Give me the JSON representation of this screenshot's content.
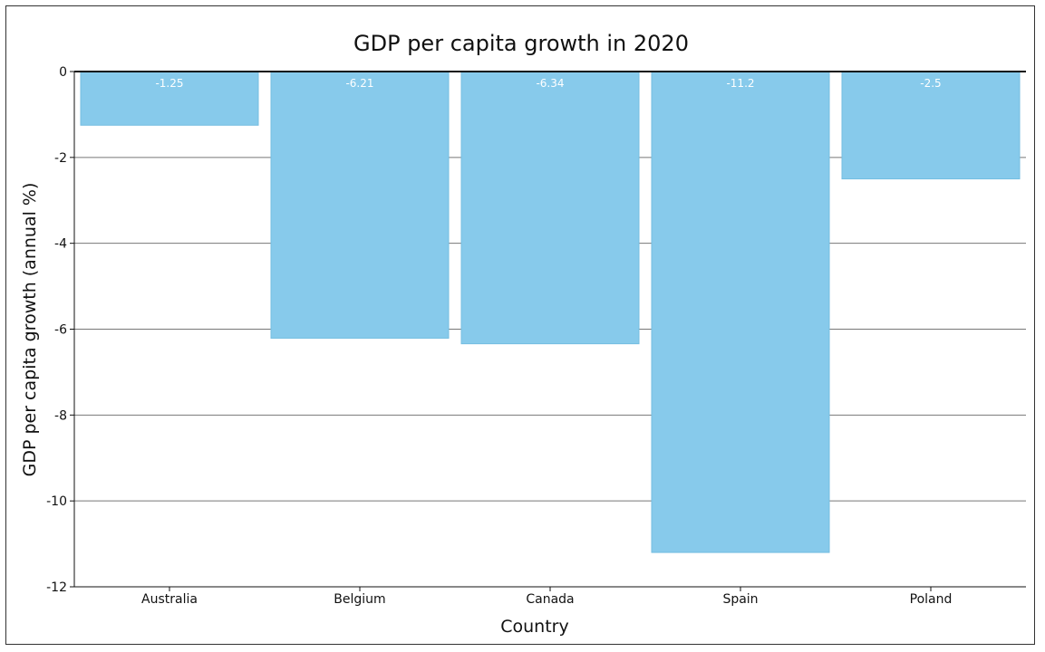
{
  "chart_data": {
    "type": "bar",
    "title": "GDP per capita growth in 2020",
    "xlabel": "Country",
    "ylabel": "GDP per capita growth (annual %)",
    "categories": [
      "Australia",
      "Belgium",
      "Canada",
      "Spain",
      "Poland"
    ],
    "values": [
      -1.25,
      -6.21,
      -6.34,
      -11.2,
      -2.5
    ],
    "data_labels": [
      "-1.25",
      "-6.21",
      "-6.34",
      "-11.2",
      "-2.5"
    ],
    "ylim": [
      -12,
      0
    ],
    "yticks": [
      0,
      -2,
      -4,
      -6,
      -8,
      -10,
      -12
    ],
    "ytick_labels": [
      "0",
      "-2",
      "-4",
      "-6",
      "-8",
      "-10",
      "-12"
    ],
    "grid": true,
    "legend": "none",
    "colors": {
      "bar": "#87CAEB",
      "bar_stroke": "#74BDE1",
      "grid": "#777777",
      "axis": "#111111",
      "data_label": "#ffffff"
    }
  }
}
